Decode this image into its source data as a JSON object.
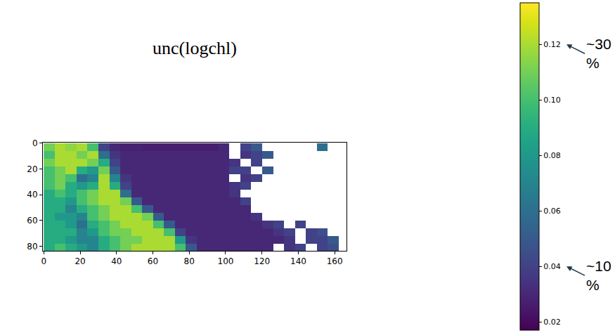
{
  "chart_data": {
    "type": "heatmap",
    "title": "unc(logchl)",
    "color": "Viridis",
    "x": [
      3,
      9,
      15,
      21,
      27,
      33,
      39,
      45,
      51,
      57,
      63,
      69,
      75,
      81,
      87,
      93,
      99,
      105,
      111,
      117,
      123,
      129,
      135,
      141,
      147,
      153,
      159,
      165
    ],
    "y": [
      3,
      9,
      15,
      21,
      27,
      33,
      39,
      45,
      51,
      57,
      63,
      69,
      75,
      81
    ],
    "cells": [
      [
        0.11,
        0.12,
        0.115,
        0.12,
        0.1,
        0.04,
        0.03,
        0.028,
        0.028,
        0.027,
        0.027,
        0.027,
        0.027,
        0.027,
        0.027,
        0.027,
        0.03,
        null,
        0.04,
        0.05,
        null,
        null,
        null,
        null,
        null,
        0.06,
        null,
        null
      ],
      [
        0.1,
        0.12,
        0.12,
        0.11,
        0.12,
        0.06,
        0.035,
        0.03,
        0.03,
        0.03,
        0.03,
        0.03,
        0.03,
        0.03,
        0.03,
        0.03,
        0.03,
        null,
        0.035,
        0.04,
        0.05,
        null,
        null,
        null,
        null,
        null,
        null,
        null
      ],
      [
        0.11,
        0.12,
        0.12,
        0.12,
        0.11,
        0.09,
        0.04,
        0.03,
        0.03,
        0.03,
        0.03,
        0.03,
        0.03,
        0.03,
        0.03,
        0.03,
        0.03,
        0.035,
        null,
        0.04,
        null,
        null,
        null,
        null,
        null,
        null,
        null,
        null
      ],
      [
        0.1,
        0.11,
        0.12,
        0.09,
        0.08,
        0.11,
        0.05,
        0.03,
        0.03,
        0.03,
        0.03,
        0.03,
        0.03,
        0.03,
        0.03,
        0.03,
        0.03,
        0.04,
        0.04,
        null,
        0.05,
        null,
        null,
        null,
        null,
        null,
        null,
        null
      ],
      [
        0.1,
        0.11,
        0.1,
        0.06,
        0.07,
        0.12,
        0.07,
        0.035,
        0.03,
        0.03,
        0.03,
        0.03,
        0.03,
        0.03,
        0.03,
        0.03,
        0.03,
        null,
        0.035,
        0.04,
        null,
        null,
        null,
        null,
        null,
        null,
        null,
        null
      ],
      [
        0.1,
        0.11,
        0.09,
        0.08,
        0.09,
        0.12,
        0.09,
        0.04,
        0.03,
        0.03,
        0.03,
        0.03,
        0.03,
        0.03,
        0.03,
        0.03,
        0.03,
        0.035,
        0.04,
        null,
        null,
        null,
        null,
        null,
        null,
        null,
        null,
        null
      ],
      [
        0.09,
        0.1,
        0.09,
        0.1,
        0.11,
        0.12,
        0.12,
        0.06,
        0.03,
        0.03,
        0.03,
        0.03,
        0.03,
        0.03,
        0.03,
        0.03,
        0.03,
        0.035,
        null,
        null,
        null,
        null,
        null,
        null,
        null,
        null,
        null,
        null
      ],
      [
        0.09,
        0.09,
        0.08,
        0.1,
        0.11,
        0.12,
        0.12,
        0.11,
        0.05,
        0.03,
        0.03,
        0.03,
        0.03,
        0.03,
        0.03,
        0.03,
        0.03,
        0.03,
        0.04,
        null,
        null,
        null,
        null,
        null,
        null,
        null,
        null,
        null
      ],
      [
        0.09,
        0.09,
        0.07,
        0.09,
        0.1,
        0.11,
        0.12,
        0.12,
        0.1,
        0.05,
        0.03,
        0.03,
        0.03,
        0.03,
        0.03,
        0.03,
        0.03,
        0.03,
        0.03,
        null,
        null,
        null,
        null,
        null,
        null,
        null,
        null,
        null
      ],
      [
        0.09,
        0.08,
        0.08,
        0.07,
        0.1,
        0.11,
        0.12,
        0.12,
        0.12,
        0.11,
        0.05,
        0.03,
        0.03,
        0.03,
        0.03,
        0.03,
        0.03,
        0.03,
        0.03,
        0.035,
        null,
        null,
        null,
        null,
        null,
        null,
        null,
        null
      ],
      [
        0.09,
        0.09,
        0.08,
        0.06,
        0.09,
        0.1,
        0.11,
        0.12,
        0.12,
        0.12,
        0.1,
        0.05,
        0.03,
        0.03,
        0.03,
        0.03,
        0.03,
        0.03,
        0.03,
        0.03,
        0.035,
        0.04,
        null,
        0.04,
        null,
        null,
        null,
        null
      ],
      [
        0.09,
        0.09,
        0.09,
        0.07,
        0.08,
        0.1,
        0.11,
        0.11,
        0.12,
        0.12,
        0.12,
        0.1,
        0.04,
        0.03,
        0.03,
        0.03,
        0.03,
        0.03,
        0.03,
        0.03,
        0.03,
        0.035,
        0.04,
        null,
        0.04,
        0.045,
        null,
        null
      ],
      [
        0.09,
        0.09,
        0.08,
        0.07,
        0.07,
        0.09,
        0.1,
        0.11,
        0.11,
        0.12,
        0.12,
        0.12,
        0.08,
        0.035,
        0.03,
        0.03,
        0.03,
        0.03,
        0.03,
        0.03,
        0.03,
        0.03,
        0.035,
        null,
        0.04,
        0.04,
        0.05,
        null
      ],
      [
        0.09,
        0.1,
        0.09,
        0.08,
        0.07,
        0.09,
        0.1,
        0.11,
        0.12,
        0.12,
        0.12,
        0.12,
        0.1,
        0.05,
        0.03,
        0.03,
        0.03,
        0.03,
        0.03,
        0.03,
        0.03,
        null,
        0.035,
        0.04,
        null,
        0.04,
        0.045,
        null
      ]
    ],
    "xlim": [
      -0.5,
      166.5
    ],
    "ylim": [
      83.5,
      -0.5
    ],
    "xticks": [
      0,
      20,
      40,
      60,
      80,
      100,
      120,
      140,
      160
    ],
    "yticks": [
      0,
      20,
      40,
      60,
      80
    ],
    "colorbar_range": [
      0.017,
      0.135
    ],
    "colorbar_ticks": [
      0.02,
      0.04,
      0.06,
      0.08,
      {
        "value": 0.1,
        "label": "0.10"
      },
      0.12
    ],
    "annotations": [
      {
        "text": "~30 %",
        "value": 0.12
      },
      {
        "text": "~10 %",
        "value": 0.04
      }
    ]
  }
}
